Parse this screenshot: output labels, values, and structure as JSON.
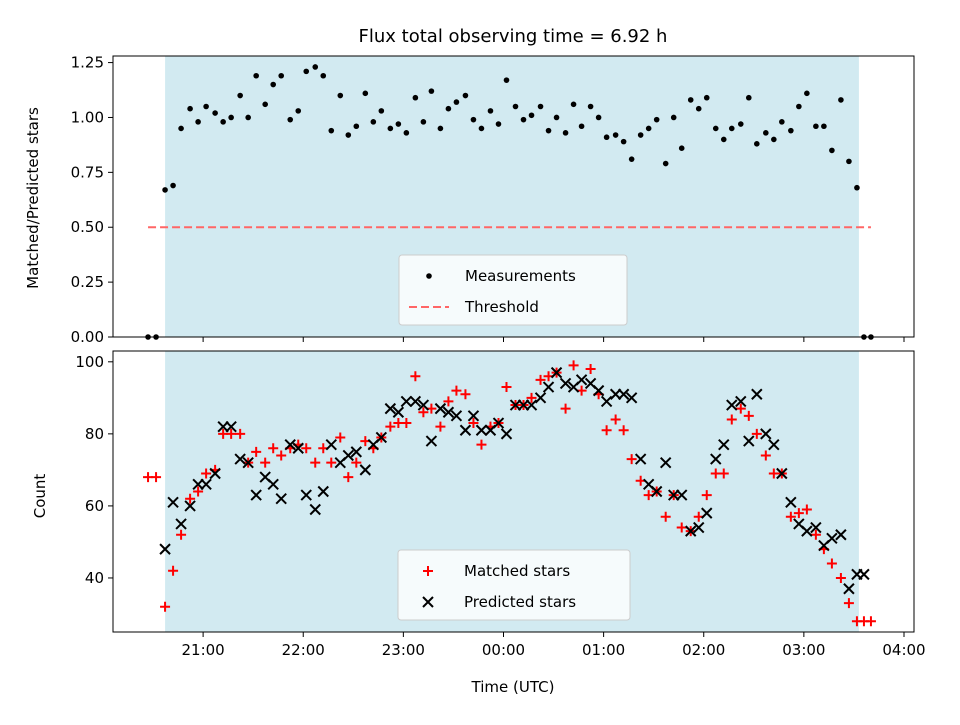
{
  "chart_data": [
    {
      "type": "scatter",
      "title": "Flux total observing time = 6.92 h",
      "xlabel": "",
      "ylabel": "Matched/Predicted stars",
      "x_unit": "hours relative to 00:00 UTC",
      "xlim": [
        -3.9,
        4.1
      ],
      "ylim": [
        0.0,
        1.28
      ],
      "yticks": [
        "0.00",
        "0.25",
        "0.50",
        "0.75",
        "1.00",
        "1.25"
      ],
      "xticks_shown": false,
      "shaded_span": [
        -3.38,
        3.55
      ],
      "shaded_color": "#add8e6",
      "legend_location": "lower center",
      "threshold": {
        "name": "Threshold",
        "y": 0.5,
        "x": [
          -3.55,
          3.67
        ],
        "color": "#ff6666"
      },
      "series": [
        {
          "name": "Measurements",
          "marker": "dot",
          "color": "#000000",
          "points": [
            [
              -3.55,
              0.0
            ],
            [
              -3.47,
              0.0
            ],
            [
              -3.38,
              0.67
            ],
            [
              -3.3,
              0.69
            ],
            [
              -3.22,
              0.95
            ],
            [
              -3.13,
              1.04
            ],
            [
              -3.05,
              0.98
            ],
            [
              -2.97,
              1.05
            ],
            [
              -2.88,
              1.02
            ],
            [
              -2.8,
              0.98
            ],
            [
              -2.72,
              1.0
            ],
            [
              -2.63,
              1.1
            ],
            [
              -2.55,
              1.0
            ],
            [
              -2.47,
              1.19
            ],
            [
              -2.38,
              1.06
            ],
            [
              -2.3,
              1.15
            ],
            [
              -2.22,
              1.19
            ],
            [
              -2.13,
              0.99
            ],
            [
              -2.05,
              1.03
            ],
            [
              -1.97,
              1.21
            ],
            [
              -1.88,
              1.23
            ],
            [
              -1.8,
              1.19
            ],
            [
              -1.72,
              0.94
            ],
            [
              -1.63,
              1.1
            ],
            [
              -1.55,
              0.92
            ],
            [
              -1.47,
              0.96
            ],
            [
              -1.38,
              1.11
            ],
            [
              -1.3,
              0.98
            ],
            [
              -1.22,
              1.03
            ],
            [
              -1.13,
              0.95
            ],
            [
              -1.05,
              0.97
            ],
            [
              -0.97,
              0.93
            ],
            [
              -0.88,
              1.09
            ],
            [
              -0.8,
              0.98
            ],
            [
              -0.72,
              1.12
            ],
            [
              -0.63,
              0.95
            ],
            [
              -0.55,
              1.04
            ],
            [
              -0.47,
              1.07
            ],
            [
              -0.38,
              1.1
            ],
            [
              -0.3,
              0.99
            ],
            [
              -0.22,
              0.95
            ],
            [
              -0.13,
              1.03
            ],
            [
              -0.05,
              0.97
            ],
            [
              0.03,
              1.17
            ],
            [
              0.12,
              1.05
            ],
            [
              0.2,
              0.99
            ],
            [
              0.28,
              1.01
            ],
            [
              0.37,
              1.05
            ],
            [
              0.45,
              0.94
            ],
            [
              0.53,
              1.0
            ],
            [
              0.62,
              0.93
            ],
            [
              0.7,
              1.06
            ],
            [
              0.78,
              0.96
            ],
            [
              0.87,
              1.05
            ],
            [
              0.95,
              1.0
            ],
            [
              1.03,
              0.91
            ],
            [
              1.12,
              0.92
            ],
            [
              1.2,
              0.89
            ],
            [
              1.28,
              0.81
            ],
            [
              1.37,
              0.92
            ],
            [
              1.45,
              0.95
            ],
            [
              1.53,
              0.99
            ],
            [
              1.62,
              0.79
            ],
            [
              1.7,
              1.0
            ],
            [
              1.78,
              0.86
            ],
            [
              1.87,
              1.08
            ],
            [
              1.95,
              1.04
            ],
            [
              2.03,
              1.09
            ],
            [
              2.12,
              0.95
            ],
            [
              2.2,
              0.9
            ],
            [
              2.28,
              0.95
            ],
            [
              2.37,
              0.97
            ],
            [
              2.45,
              1.09
            ],
            [
              2.53,
              0.88
            ],
            [
              2.62,
              0.93
            ],
            [
              2.7,
              0.9
            ],
            [
              2.78,
              0.98
            ],
            [
              2.87,
              0.94
            ],
            [
              2.95,
              1.05
            ],
            [
              3.03,
              1.11
            ],
            [
              3.12,
              0.96
            ],
            [
              3.2,
              0.96
            ],
            [
              3.28,
              0.85
            ],
            [
              3.37,
              1.08
            ],
            [
              3.45,
              0.8
            ],
            [
              3.53,
              0.68
            ],
            [
              3.6,
              0.0
            ],
            [
              3.67,
              0.0
            ]
          ]
        }
      ]
    },
    {
      "type": "scatter",
      "title": "",
      "xlabel": "Time (UTC)",
      "ylabel": "Count",
      "x_unit": "hours relative to 00:00 UTC",
      "xlim": [
        -3.9,
        4.1
      ],
      "ylim": [
        25,
        103
      ],
      "yticks": [
        "40",
        "60",
        "80",
        "100"
      ],
      "xticks": [
        "21:00",
        "22:00",
        "23:00",
        "00:00",
        "01:00",
        "02:00",
        "03:00",
        "04:00"
      ],
      "shaded_span": [
        -3.38,
        3.55
      ],
      "shaded_color": "#add8e6",
      "legend_location": "lower center",
      "series": [
        {
          "name": "Matched stars",
          "marker": "plus",
          "color": "#ff0000",
          "points": [
            [
              -3.55,
              68
            ],
            [
              -3.47,
              68
            ],
            [
              -3.38,
              32
            ],
            [
              -3.3,
              42
            ],
            [
              -3.22,
              52
            ],
            [
              -3.13,
              62
            ],
            [
              -3.05,
              64
            ],
            [
              -2.97,
              69
            ],
            [
              -2.88,
              70
            ],
            [
              -2.8,
              80
            ],
            [
              -2.72,
              80
            ],
            [
              -2.63,
              80
            ],
            [
              -2.55,
              72
            ],
            [
              -2.47,
              75
            ],
            [
              -2.38,
              72
            ],
            [
              -2.3,
              76
            ],
            [
              -2.22,
              74
            ],
            [
              -2.13,
              76
            ],
            [
              -2.05,
              77
            ],
            [
              -1.97,
              76
            ],
            [
              -1.88,
              72
            ],
            [
              -1.8,
              76
            ],
            [
              -1.72,
              72
            ],
            [
              -1.63,
              79
            ],
            [
              -1.55,
              68
            ],
            [
              -1.47,
              72
            ],
            [
              -1.38,
              78
            ],
            [
              -1.3,
              76
            ],
            [
              -1.22,
              79
            ],
            [
              -1.13,
              82
            ],
            [
              -1.05,
              83
            ],
            [
              -0.97,
              83
            ],
            [
              -0.88,
              96
            ],
            [
              -0.8,
              86
            ],
            [
              -0.72,
              87
            ],
            [
              -0.63,
              82
            ],
            [
              -0.55,
              89
            ],
            [
              -0.47,
              92
            ],
            [
              -0.38,
              91
            ],
            [
              -0.3,
              83
            ],
            [
              -0.22,
              77
            ],
            [
              -0.13,
              82
            ],
            [
              -0.05,
              83
            ],
            [
              0.03,
              93
            ],
            [
              0.12,
              88
            ],
            [
              0.2,
              88
            ],
            [
              0.28,
              90
            ],
            [
              0.37,
              95
            ],
            [
              0.45,
              96
            ],
            [
              0.53,
              97
            ],
            [
              0.62,
              87
            ],
            [
              0.7,
              99
            ],
            [
              0.78,
              92
            ],
            [
              0.87,
              98
            ],
            [
              0.95,
              91
            ],
            [
              1.03,
              81
            ],
            [
              1.12,
              84
            ],
            [
              1.2,
              81
            ],
            [
              1.28,
              73
            ],
            [
              1.37,
              67
            ],
            [
              1.45,
              63
            ],
            [
              1.53,
              64
            ],
            [
              1.62,
              57
            ],
            [
              1.7,
              63
            ],
            [
              1.78,
              54
            ],
            [
              1.87,
              53
            ],
            [
              1.95,
              57
            ],
            [
              2.03,
              63
            ],
            [
              2.12,
              69
            ],
            [
              2.2,
              69
            ],
            [
              2.28,
              84
            ],
            [
              2.37,
              87
            ],
            [
              2.45,
              85
            ],
            [
              2.53,
              80
            ],
            [
              2.62,
              74
            ],
            [
              2.7,
              69
            ],
            [
              2.78,
              69
            ],
            [
              2.87,
              57
            ],
            [
              2.95,
              58
            ],
            [
              3.03,
              59
            ],
            [
              3.12,
              52
            ],
            [
              3.2,
              48
            ],
            [
              3.28,
              44
            ],
            [
              3.37,
              40
            ],
            [
              3.45,
              33
            ],
            [
              3.53,
              28
            ],
            [
              3.6,
              28
            ],
            [
              3.67,
              28
            ]
          ]
        },
        {
          "name": "Predicted stars",
          "marker": "x",
          "color": "#000000",
          "points": [
            [
              -3.38,
              48
            ],
            [
              -3.3,
              61
            ],
            [
              -3.22,
              55
            ],
            [
              -3.13,
              60
            ],
            [
              -3.05,
              66
            ],
            [
              -2.97,
              66
            ],
            [
              -2.88,
              69
            ],
            [
              -2.8,
              82
            ],
            [
              -2.72,
              82
            ],
            [
              -2.63,
              73
            ],
            [
              -2.55,
              72
            ],
            [
              -2.47,
              63
            ],
            [
              -2.38,
              68
            ],
            [
              -2.3,
              66
            ],
            [
              -2.22,
              62
            ],
            [
              -2.13,
              77
            ],
            [
              -2.05,
              76
            ],
            [
              -1.97,
              63
            ],
            [
              -1.88,
              59
            ],
            [
              -1.8,
              64
            ],
            [
              -1.72,
              77
            ],
            [
              -1.63,
              72
            ],
            [
              -1.55,
              74
            ],
            [
              -1.47,
              75
            ],
            [
              -1.38,
              70
            ],
            [
              -1.3,
              77
            ],
            [
              -1.22,
              79
            ],
            [
              -1.13,
              87
            ],
            [
              -1.05,
              86
            ],
            [
              -0.97,
              89
            ],
            [
              -0.88,
              89
            ],
            [
              -0.8,
              88
            ],
            [
              -0.72,
              78
            ],
            [
              -0.63,
              87
            ],
            [
              -0.55,
              86
            ],
            [
              -0.47,
              85
            ],
            [
              -0.38,
              81
            ],
            [
              -0.3,
              85
            ],
            [
              -0.22,
              81
            ],
            [
              -0.13,
              81
            ],
            [
              -0.05,
              83
            ],
            [
              0.03,
              80
            ],
            [
              0.12,
              88
            ],
            [
              0.2,
              88
            ],
            [
              0.28,
              88
            ],
            [
              0.37,
              90
            ],
            [
              0.45,
              93
            ],
            [
              0.53,
              97
            ],
            [
              0.62,
              94
            ],
            [
              0.7,
              93
            ],
            [
              0.78,
              95
            ],
            [
              0.87,
              94
            ],
            [
              0.95,
              92
            ],
            [
              1.03,
              89
            ],
            [
              1.12,
              91
            ],
            [
              1.2,
              91
            ],
            [
              1.28,
              90
            ],
            [
              1.37,
              73
            ],
            [
              1.45,
              66
            ],
            [
              1.53,
              64
            ],
            [
              1.62,
              72
            ],
            [
              1.7,
              63
            ],
            [
              1.78,
              63
            ],
            [
              1.87,
              53
            ],
            [
              1.95,
              54
            ],
            [
              2.03,
              58
            ],
            [
              2.12,
              73
            ],
            [
              2.2,
              77
            ],
            [
              2.28,
              88
            ],
            [
              2.37,
              89
            ],
            [
              2.45,
              78
            ],
            [
              2.53,
              91
            ],
            [
              2.62,
              80
            ],
            [
              2.7,
              77
            ],
            [
              2.78,
              69
            ],
            [
              2.87,
              61
            ],
            [
              2.95,
              55
            ],
            [
              3.03,
              53
            ],
            [
              3.12,
              54
            ],
            [
              3.2,
              49
            ],
            [
              3.28,
              51
            ],
            [
              3.37,
              52
            ],
            [
              3.45,
              37
            ],
            [
              3.53,
              41
            ],
            [
              3.6,
              41
            ]
          ]
        }
      ]
    }
  ]
}
